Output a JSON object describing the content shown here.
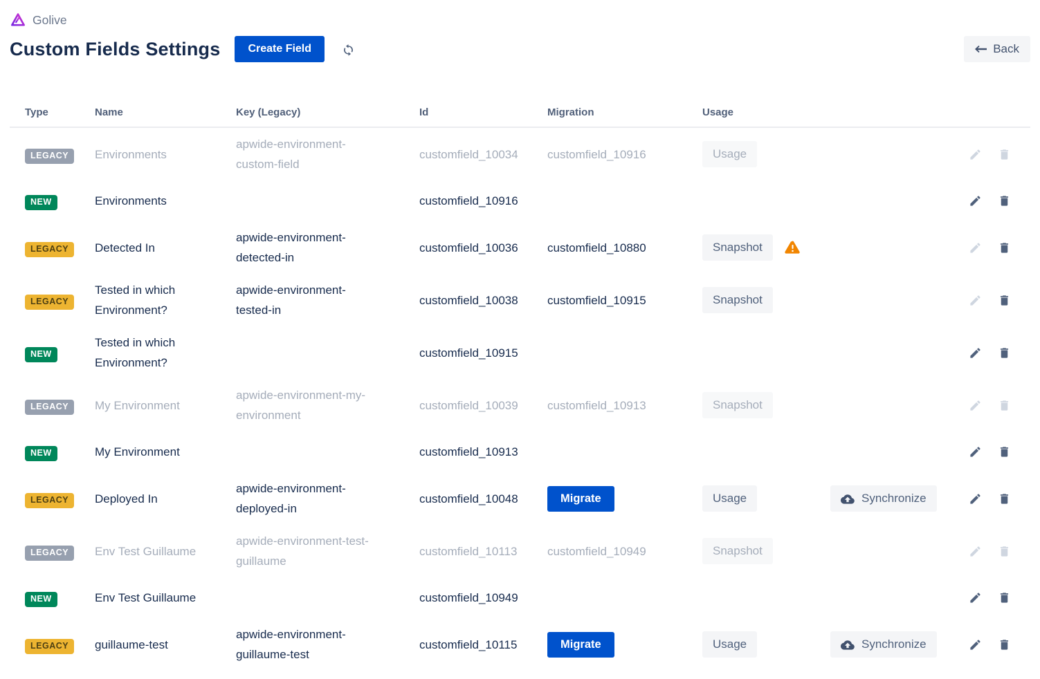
{
  "brand": {
    "name": "Golive",
    "logo_icon": "golive-logo"
  },
  "page": {
    "title": "Custom Fields Settings"
  },
  "toolbar": {
    "create_field_label": "Create Field",
    "refresh_icon": "refresh-icon",
    "back_label": "Back"
  },
  "colors": {
    "primary_blue": "#0052CC",
    "new_badge_green": "#00875A",
    "legacy_active_badge_yellow": "#EDB431",
    "legacy_inactive_badge_gray": "#97A0AF",
    "warning_orange": "#F18500",
    "title_navy": "#172B4D",
    "dimmed_text": "#A5ADBA"
  },
  "table": {
    "columns": [
      "Type",
      "Name",
      "Key (Legacy)",
      "Id",
      "Migration",
      "Usage"
    ],
    "rows": [
      {
        "type": "LEGACY",
        "variant": "gray",
        "dimmed": true,
        "name": "Environments",
        "key": "apwide-environment-custom-field",
        "id": "customfield_10034",
        "migration_text": "customfield_10916",
        "migrate_button": null,
        "usage_button": "Usage",
        "usage_disabled": true,
        "usage_warning": false,
        "sync_button": null,
        "edit_enabled": false,
        "delete_enabled": false
      },
      {
        "type": "NEW",
        "variant": "green",
        "dimmed": false,
        "name": "Environments",
        "key": "",
        "id": "customfield_10916",
        "migration_text": "",
        "migrate_button": null,
        "usage_button": null,
        "usage_disabled": false,
        "usage_warning": false,
        "sync_button": null,
        "edit_enabled": true,
        "delete_enabled": true
      },
      {
        "type": "LEGACY",
        "variant": "yellow",
        "dimmed": false,
        "name": "Detected In",
        "key": "apwide-environment-detected-in",
        "id": "customfield_10036",
        "migration_text": "customfield_10880",
        "migrate_button": null,
        "usage_button": "Snapshot",
        "usage_disabled": false,
        "usage_warning": true,
        "sync_button": null,
        "edit_enabled": false,
        "delete_enabled": true
      },
      {
        "type": "LEGACY",
        "variant": "yellow",
        "dimmed": false,
        "name": "Tested in which Environment?",
        "key": "apwide-environment-tested-in",
        "id": "customfield_10038",
        "migration_text": "customfield_10915",
        "migrate_button": null,
        "usage_button": "Snapshot",
        "usage_disabled": false,
        "usage_warning": false,
        "sync_button": null,
        "edit_enabled": false,
        "delete_enabled": true
      },
      {
        "type": "NEW",
        "variant": "green",
        "dimmed": false,
        "name": "Tested in which Environment?",
        "key": "",
        "id": "customfield_10915",
        "migration_text": "",
        "migrate_button": null,
        "usage_button": null,
        "usage_disabled": false,
        "usage_warning": false,
        "sync_button": null,
        "edit_enabled": true,
        "delete_enabled": true
      },
      {
        "type": "LEGACY",
        "variant": "gray",
        "dimmed": true,
        "name": "My Environment",
        "key": "apwide-environment-my-environment",
        "id": "customfield_10039",
        "migration_text": "customfield_10913",
        "migrate_button": null,
        "usage_button": "Snapshot",
        "usage_disabled": true,
        "usage_warning": false,
        "sync_button": null,
        "edit_enabled": false,
        "delete_enabled": false
      },
      {
        "type": "NEW",
        "variant": "green",
        "dimmed": false,
        "name": "My Environment",
        "key": "",
        "id": "customfield_10913",
        "migration_text": "",
        "migrate_button": null,
        "usage_button": null,
        "usage_disabled": false,
        "usage_warning": false,
        "sync_button": null,
        "edit_enabled": true,
        "delete_enabled": true
      },
      {
        "type": "LEGACY",
        "variant": "yellow",
        "dimmed": false,
        "name": "Deployed In",
        "key": "apwide-environment-deployed-in",
        "id": "customfield_10048",
        "migration_text": "",
        "migrate_button": "Migrate",
        "usage_button": "Usage",
        "usage_disabled": false,
        "usage_warning": false,
        "sync_button": "Synchronize",
        "edit_enabled": true,
        "delete_enabled": true
      },
      {
        "type": "LEGACY",
        "variant": "gray",
        "dimmed": true,
        "name": "Env Test Guillaume",
        "key": "apwide-environment-test-guillaume",
        "id": "customfield_10113",
        "migration_text": "customfield_10949",
        "migrate_button": null,
        "usage_button": "Snapshot",
        "usage_disabled": true,
        "usage_warning": false,
        "sync_button": null,
        "edit_enabled": false,
        "delete_enabled": false
      },
      {
        "type": "NEW",
        "variant": "green",
        "dimmed": false,
        "name": "Env Test Guillaume",
        "key": "",
        "id": "customfield_10949",
        "migration_text": "",
        "migrate_button": null,
        "usage_button": null,
        "usage_disabled": false,
        "usage_warning": false,
        "sync_button": null,
        "edit_enabled": true,
        "delete_enabled": true
      },
      {
        "type": "LEGACY",
        "variant": "yellow",
        "dimmed": false,
        "name": "guillaume-test",
        "key": "apwide-environment-guillaume-test",
        "id": "customfield_10115",
        "migration_text": "",
        "migrate_button": "Migrate",
        "usage_button": "Usage",
        "usage_disabled": false,
        "usage_warning": false,
        "sync_button": "Synchronize",
        "edit_enabled": true,
        "delete_enabled": true
      }
    ]
  }
}
